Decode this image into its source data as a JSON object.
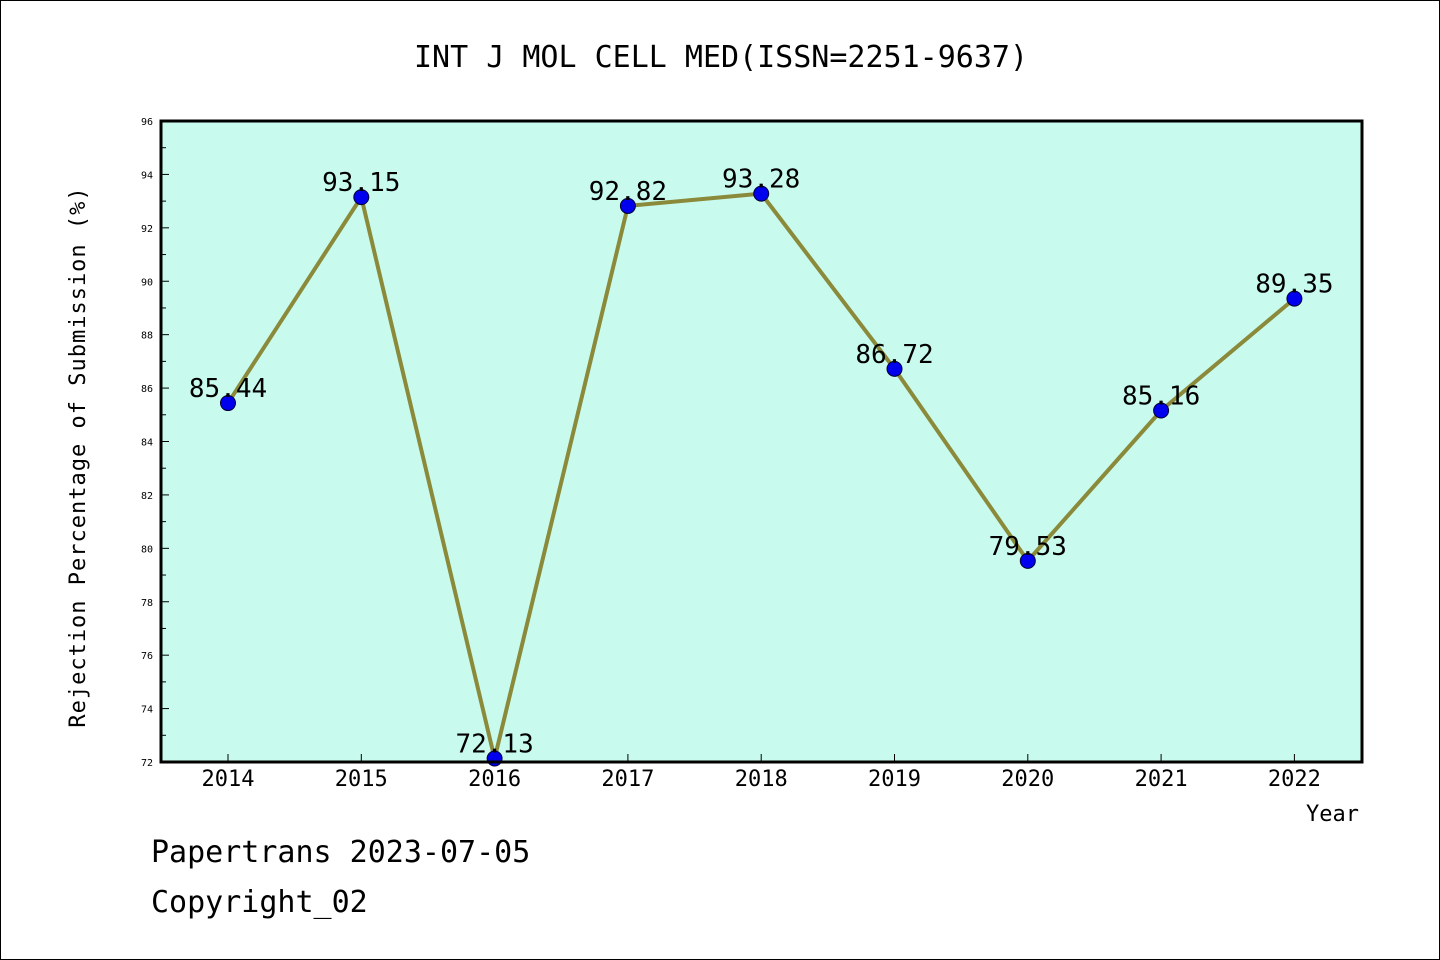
{
  "chart_data": {
    "type": "line",
    "title": "INT J MOL CELL MED(ISSN=2251-9637)",
    "xlabel": "Year",
    "ylabel": "Rejection Percentage of Submission (%)",
    "categories": [
      "2014",
      "2015",
      "2016",
      "2017",
      "2018",
      "2019",
      "2020",
      "2021",
      "2022"
    ],
    "values": [
      85.44,
      93.15,
      72.13,
      92.82,
      93.28,
      86.72,
      79.53,
      85.16,
      89.35
    ],
    "data_labels": [
      "85.44",
      "93.15",
      "72.13",
      "92.82",
      "93.28",
      "86.72",
      "79.53",
      "85.16",
      "89.35"
    ],
    "ylim": [
      72,
      96
    ],
    "yticks": [
      72,
      74,
      76,
      78,
      80,
      82,
      84,
      86,
      88,
      90,
      92,
      94,
      96
    ],
    "grid": false,
    "colors": {
      "plot_background": "#c8fbee",
      "line": "#8b8a3a",
      "marker": "#0000ee"
    }
  },
  "footer": {
    "line1": "Papertrans 2023-07-05",
    "line2": "Copyright_02"
  }
}
